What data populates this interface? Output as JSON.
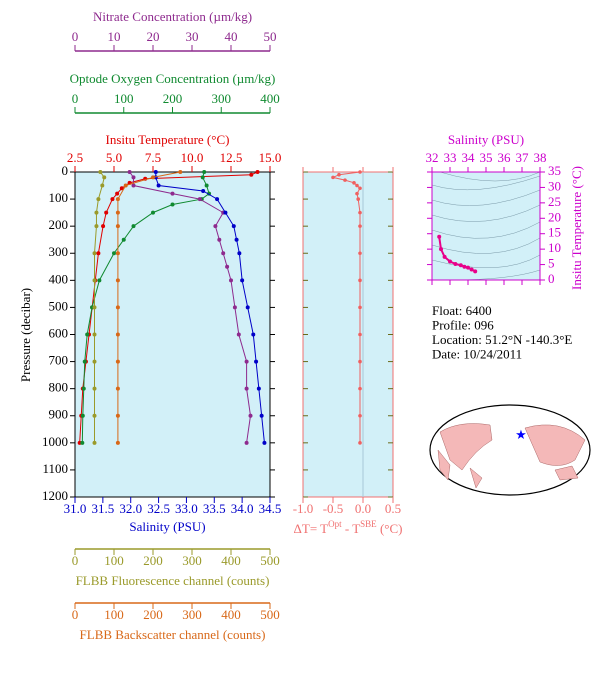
{
  "chart_data": [
    {
      "type": "profile",
      "ylabel": "Pressure (decibar)",
      "ylim": [
        0,
        1200
      ],
      "yticks": [
        0,
        100,
        200,
        300,
        400,
        500,
        600,
        700,
        800,
        900,
        1000,
        1100,
        1200
      ],
      "axes": [
        {
          "side": "top",
          "label": "Insitu Temperature (°C)",
          "color": "#e00000",
          "xlim": [
            2.5,
            15
          ],
          "xticks": [
            2.5,
            {
              "value": 5,
              "label": "5.0"
            },
            7.5,
            {
              "value": 10,
              "label": "10.0"
            },
            12.5,
            {
              "value": 15,
              "label": "15.0"
            }
          ]
        },
        {
          "side": "top",
          "label": "Optode Oxygen Concentration (µm/kg)",
          "color": "#108a30",
          "xlim": [
            0,
            400
          ],
          "xticks": [
            0,
            100,
            200,
            300,
            400
          ]
        },
        {
          "side": "top",
          "label": "Nitrate Concentration (µm/kg)",
          "color": "#8e2a8e",
          "xlim": [
            0,
            50
          ],
          "xticks": [
            0,
            10,
            20,
            30,
            40,
            50
          ]
        },
        {
          "side": "bottom",
          "label": "Salinity (PSU)",
          "color": "#0000c8",
          "xlim": [
            31,
            34.5
          ],
          "xticks": [
            {
              "value": 31,
              "label": "31.0"
            },
            31.5,
            {
              "value": 32,
              "label": "32.0"
            },
            32.5,
            {
              "value": 33,
              "label": "33.0"
            },
            33.5,
            {
              "value": 34,
              "label": "34.0"
            },
            34.5
          ]
        },
        {
          "side": "bottom",
          "label": "FLBB Fluorescence channel (counts)",
          "color": "#9a9a2a",
          "xlim": [
            0,
            500
          ],
          "xticks": [
            0,
            100,
            200,
            300,
            400,
            500
          ]
        },
        {
          "side": "bottom",
          "label": "FLBB Backscatter channel (counts)",
          "color": "#d86818",
          "xlim": [
            0,
            500
          ],
          "xticks": [
            0,
            100,
            200,
            300,
            400,
            500
          ]
        }
      ],
      "series": [
        {
          "axis": 0,
          "color": "#e00000",
          "pressure": [
            0,
            10,
            25,
            40,
            60,
            80,
            100,
            150,
            200,
            300,
            400,
            500,
            600,
            700,
            800,
            900,
            1000
          ],
          "values": [
            14.2,
            13.8,
            7.0,
            6.0,
            5.5,
            5.2,
            4.9,
            4.5,
            4.3,
            4.0,
            3.8,
            3.6,
            3.4,
            3.2,
            3.0,
            2.9,
            2.8
          ]
        },
        {
          "axis": 1,
          "color": "#108a30",
          "pressure": [
            0,
            20,
            50,
            80,
            100,
            120,
            150,
            200,
            250,
            300,
            400,
            500,
            600,
            700,
            800,
            900,
            1000
          ],
          "values": [
            265,
            262,
            270,
            275,
            260,
            200,
            160,
            120,
            100,
            80,
            50,
            35,
            25,
            20,
            18,
            16,
            15
          ]
        },
        {
          "axis": 2,
          "color": "#8e2a8e",
          "pressure": [
            0,
            20,
            50,
            80,
            100,
            150,
            200,
            250,
            300,
            350,
            400,
            500,
            600,
            700,
            800,
            900,
            1000
          ],
          "values": [
            14,
            15,
            15,
            25,
            32,
            38,
            36,
            37,
            38,
            39,
            40,
            41,
            42,
            44,
            44,
            45,
            44
          ]
        },
        {
          "axis": 3,
          "color": "#0000c8",
          "pressure": [
            0,
            20,
            50,
            70,
            100,
            150,
            200,
            250,
            300,
            400,
            500,
            600,
            700,
            800,
            900,
            1000
          ],
          "values": [
            32.45,
            32.45,
            32.5,
            33.3,
            33.55,
            33.7,
            33.85,
            33.9,
            33.95,
            34.0,
            34.1,
            34.2,
            34.25,
            34.3,
            34.35,
            34.4
          ]
        },
        {
          "axis": 4,
          "color": "#9a9a2a",
          "pressure": [
            0,
            20,
            50,
            100,
            150,
            200,
            300,
            400,
            500,
            600,
            700,
            800,
            900,
            1000
          ],
          "values": [
            65,
            75,
            70,
            60,
            55,
            55,
            50,
            50,
            50,
            50,
            50,
            50,
            50,
            50
          ]
        },
        {
          "axis": 5,
          "color": "#d86818",
          "pressure": [
            0,
            20,
            50,
            100,
            150,
            200,
            300,
            400,
            500,
            600,
            700,
            800,
            900,
            1000
          ],
          "values": [
            270,
            200,
            130,
            110,
            110,
            110,
            110,
            110,
            110,
            110,
            110,
            110,
            110,
            110
          ]
        }
      ]
    },
    {
      "type": "delta",
      "xlabel": [
        "ΔT= T",
        "Opt",
        " - T",
        "SBE",
        " (°C)"
      ],
      "color": "#f06060",
      "xlim": [
        -1,
        0.5
      ],
      "xticks": [
        {
          "value": -1,
          "label": "-1.0"
        },
        -0.5,
        {
          "value": 0,
          "label": "0.0"
        },
        0.5
      ],
      "ylim": [
        0,
        1200
      ],
      "pressure": [
        0,
        10,
        20,
        30,
        40,
        50,
        60,
        80,
        100,
        150,
        200,
        300,
        400,
        500,
        600,
        700,
        800,
        900,
        1000
      ],
      "values": [
        -0.05,
        -0.4,
        -0.5,
        -0.3,
        -0.15,
        -0.1,
        -0.05,
        -0.1,
        -0.08,
        -0.05,
        -0.05,
        -0.05,
        -0.05,
        -0.05,
        -0.05,
        -0.05,
        -0.05,
        -0.05,
        -0.05
      ]
    },
    {
      "type": "ts",
      "xlabel": "Salinity (PSU)",
      "ylabel": "Insitu Temperature (°C)",
      "xcolor": "#cc00cc",
      "ycolor": "#cc00cc",
      "color": "#e8008a",
      "xlim": [
        32,
        38
      ],
      "xticks": [
        32,
        33,
        34,
        35,
        36,
        37,
        38
      ],
      "ylim": [
        0,
        35
      ],
      "yticks": [
        0,
        5,
        10,
        15,
        20,
        25,
        30,
        35
      ],
      "x": [
        32.4,
        32.5,
        32.7,
        33.0,
        33.3,
        33.6,
        33.8,
        34.0,
        34.2,
        34.4
      ],
      "values": [
        14,
        10,
        7.5,
        6,
        5.2,
        4.8,
        4.3,
        4.0,
        3.4,
        2.8
      ]
    }
  ],
  "info": [
    "Float:  6400",
    "Profile:  096",
    "Location:  51.2°N  -140.3°E",
    "Date:  10/24/2011"
  ]
}
